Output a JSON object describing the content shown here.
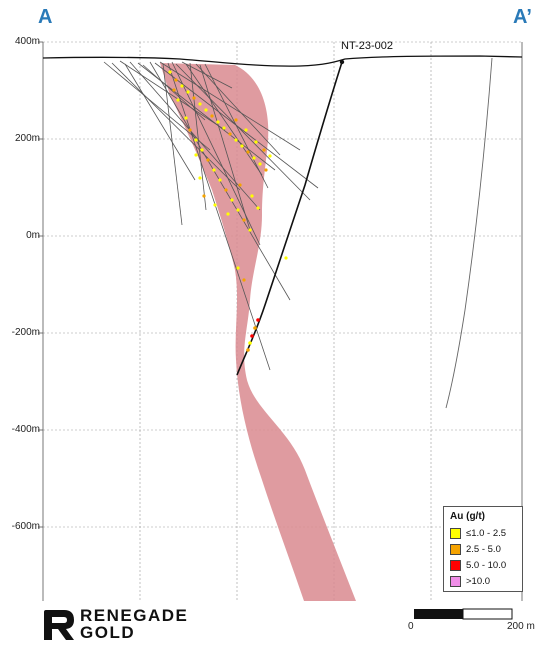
{
  "section": {
    "start_label": "A",
    "end_label": "A’"
  },
  "elevation_axis": {
    "labels": [
      "400m",
      "200m",
      "0m",
      "-200m",
      "-400m",
      "-600m"
    ]
  },
  "drill_hole": {
    "name": "NT-23-002"
  },
  "legend": {
    "title": "Au (g/t)",
    "items": [
      {
        "label": "≤1.0 - 2.5",
        "color": "#ffff00"
      },
      {
        "label": "2.5 - 5.0",
        "color": "#f5a300"
      },
      {
        "label": "5.0 - 10.0",
        "color": "#ff0000"
      },
      {
        "label": ">10.0",
        "color": "#f08ee8"
      }
    ]
  },
  "scale_bar": {
    "start_label": "0",
    "end_label": "200 m"
  },
  "logo": {
    "line1": "RENEGADE",
    "line2": "GOLD"
  },
  "colors": {
    "zone": "#d98a8f",
    "grid": "#9a9a9a",
    "accent": "#2a7ab8"
  }
}
